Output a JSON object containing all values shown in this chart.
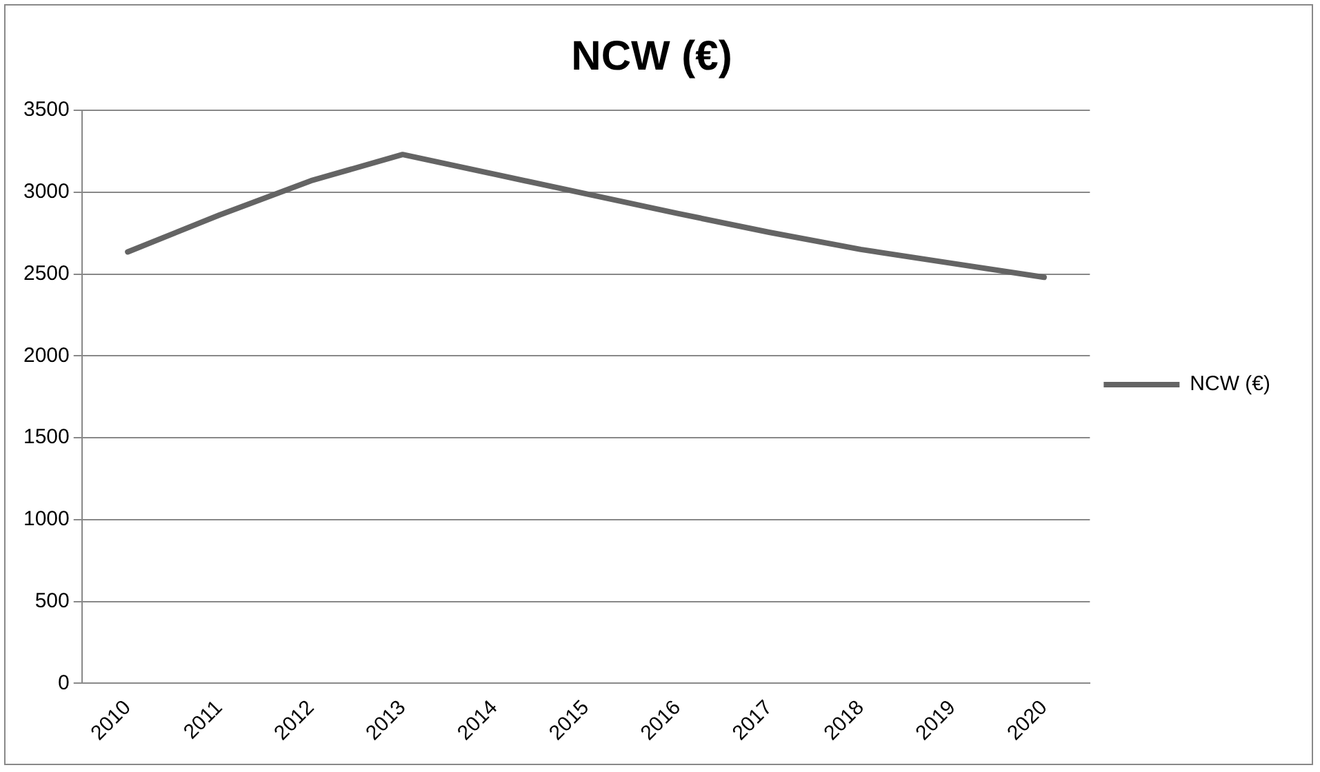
{
  "chart_data": {
    "type": "line",
    "title": "NCW (€)",
    "categories": [
      "2010",
      "2011",
      "2012",
      "2013",
      "2014",
      "2015",
      "2016",
      "2017",
      "2018",
      "2019",
      "2020"
    ],
    "series": [
      {
        "name": "NCW (€)",
        "color": "#646464",
        "values": [
          2635,
          2860,
          3070,
          3230,
          3110,
          2990,
          2870,
          2755,
          2650,
          2565,
          2480
        ]
      }
    ],
    "ylim": [
      0,
      3500
    ],
    "yticks": [
      0,
      500,
      1000,
      1500,
      2000,
      2500,
      3000,
      3500
    ],
    "grid": "y",
    "legend": "right",
    "marker": "none",
    "line_style": "solid"
  }
}
